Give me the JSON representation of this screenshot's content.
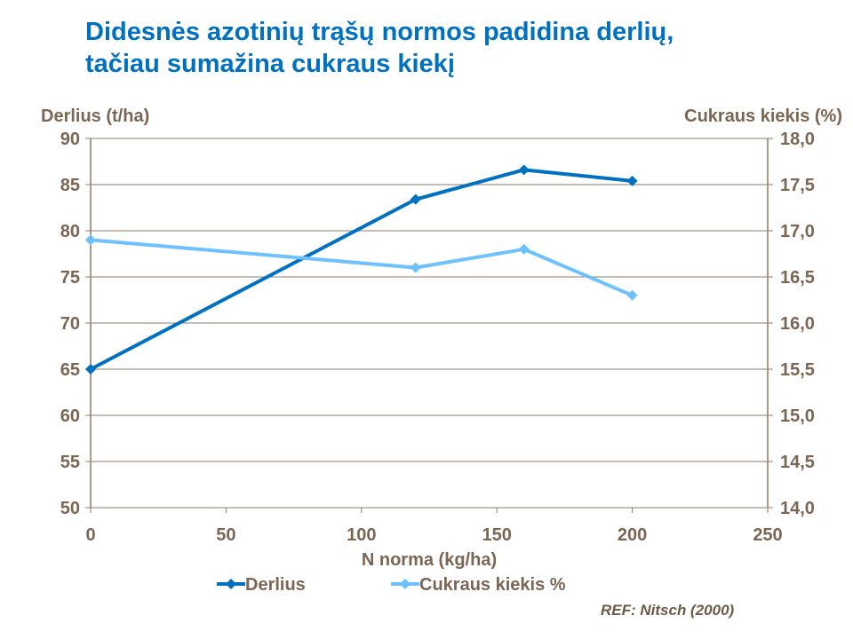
{
  "chart_data": {
    "type": "line",
    "title": "Didesnės azotinių trąšų normos padidina derlių, tačiau sumažina cukraus kiekį",
    "xlabel": "N norma (kg/ha)",
    "ylabel_left": "Derlius (t/ha)",
    "ylabel_right": "Cukraus kiekis (%)",
    "xlim": [
      0,
      250
    ],
    "xticks": [
      "0",
      "50",
      "100",
      "150",
      "200",
      "250"
    ],
    "ylim_left": [
      50,
      90
    ],
    "yticks_left": [
      "50",
      "55",
      "60",
      "65",
      "70",
      "75",
      "80",
      "85",
      "90"
    ],
    "ylim_right": [
      14.0,
      18.0
    ],
    "yticks_right": [
      "14,0",
      "14,5",
      "15,0",
      "15,5",
      "16,0",
      "16,5",
      "17,0",
      "17,5",
      "18,0"
    ],
    "grid": "horizontal",
    "legend": "bottom",
    "series": [
      {
        "name": "Derlius",
        "axis": "left",
        "color": "#0070C0",
        "x": [
          0,
          120,
          160,
          200
        ],
        "y": [
          65,
          83.4,
          86.6,
          85.4
        ]
      },
      {
        "name": "Cukraus kiekis %",
        "axis": "right",
        "color": "#6EC1FF",
        "x": [
          0,
          120,
          160,
          200
        ],
        "y": [
          16.9,
          16.6,
          16.8,
          16.3
        ]
      }
    ],
    "annotation": "REF: Nitsch (2000)"
  }
}
